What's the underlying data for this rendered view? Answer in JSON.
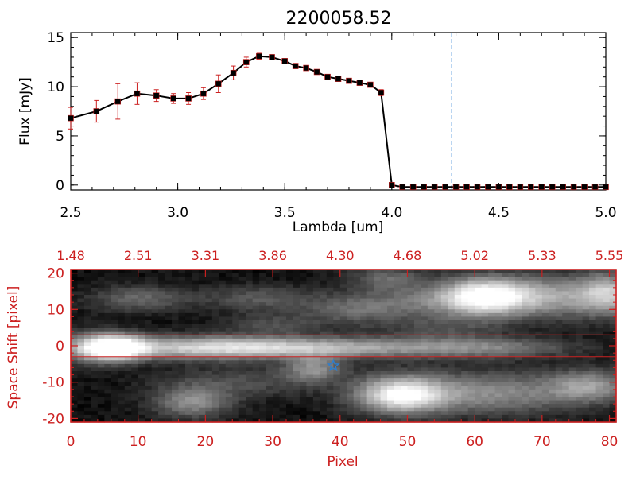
{
  "chart_data": [
    {
      "type": "line",
      "title": "2200058.52",
      "xlabel": "Lambda [um]",
      "ylabel": "Flux [mJy]",
      "xlim": [
        2.5,
        5.0
      ],
      "ylim": [
        -0.5,
        15.5
      ],
      "x_ticks": [
        "2.5",
        "3.0",
        "3.5",
        "4.0",
        "4.5",
        "5.0"
      ],
      "y_ticks": [
        "0",
        "5",
        "10",
        "15"
      ],
      "series": [
        {
          "x": [
            2.5,
            2.62,
            2.72,
            2.81,
            2.9,
            2.98,
            3.05,
            3.12,
            3.19,
            3.26,
            3.32,
            3.38,
            3.44,
            3.5,
            3.55,
            3.6,
            3.65,
            3.7,
            3.75,
            3.8,
            3.85,
            3.9,
            3.95,
            4.0,
            4.05,
            4.1,
            4.15,
            4.2,
            4.25,
            4.3,
            4.35,
            4.4,
            4.45,
            4.5,
            4.55,
            4.6,
            4.65,
            4.7,
            4.75,
            4.8,
            4.85,
            4.9,
            4.95,
            5.0
          ],
          "y": [
            6.8,
            7.5,
            8.5,
            9.3,
            9.1,
            8.8,
            8.8,
            9.3,
            10.3,
            11.4,
            12.5,
            13.1,
            13.0,
            12.6,
            12.1,
            11.9,
            11.5,
            11.0,
            10.8,
            10.6,
            10.4,
            10.2,
            9.4,
            0.0,
            -0.2,
            -0.2,
            -0.2,
            -0.2,
            -0.2,
            -0.2,
            -0.2,
            -0.2,
            -0.2,
            -0.2,
            -0.2,
            -0.2,
            -0.2,
            -0.2,
            -0.2,
            -0.2,
            -0.2,
            -0.2,
            -0.2,
            -0.2
          ],
          "yerr": [
            1.1,
            1.1,
            1.8,
            1.1,
            0.6,
            0.5,
            0.6,
            0.6,
            0.9,
            0.7,
            0.5,
            0.3,
            0.2,
            0.2,
            0.2,
            0.2,
            0.2,
            0.2,
            0.2,
            0.2,
            0.2,
            0.2,
            0.3,
            0,
            0,
            0,
            0,
            0,
            0,
            0,
            0,
            0,
            0,
            0,
            0,
            0,
            0,
            0,
            0,
            0,
            0,
            0,
            0,
            0
          ]
        }
      ],
      "vline_x": 4.28,
      "colors": {
        "line": "#000000",
        "markers": "#000000",
        "errorbars": "#cc2020",
        "vline": "#2a7fd4",
        "zero_line": "#cc2020"
      }
    },
    {
      "type": "heatmap",
      "xlabel": "Pixel",
      "ylabel": "Space Shift [pixel]",
      "xlim": [
        0,
        81
      ],
      "ylim": [
        -21,
        21
      ],
      "x_ticks": [
        "0",
        "10",
        "20",
        "30",
        "40",
        "50",
        "60",
        "70",
        "80"
      ],
      "y_ticks": [
        "-20",
        "-10",
        "0",
        "10",
        "20"
      ],
      "top_axis_ticks": [
        "1.48",
        "2.51",
        "3.31",
        "3.86",
        "4.30",
        "4.68",
        "5.02",
        "5.33",
        "5.55"
      ],
      "aperture_lines_y": [
        3,
        -3
      ],
      "star_marker": {
        "x": 39,
        "y": -5.5
      },
      "colors": {
        "axis": "#cc2020",
        "aperture": "#cc2020",
        "star": "#2a7fd4",
        "background": "#000000"
      },
      "blobs": [
        {
          "x": 3,
          "y": -0.5,
          "sx": 3.5,
          "sy": 3.0,
          "amp": 0.45
        },
        {
          "x": 7,
          "y": -0.5,
          "sx": 3.0,
          "sy": 2.4,
          "amp": 0.95
        },
        {
          "x": 20,
          "y": -0.5,
          "sx": 11.0,
          "sy": 2.2,
          "amp": 0.7
        },
        {
          "x": 40,
          "y": -0.5,
          "sx": 12.0,
          "sy": 2.0,
          "amp": 0.5
        },
        {
          "x": 62,
          "y": -0.5,
          "sx": 9.0,
          "sy": 2.0,
          "amp": 0.35
        },
        {
          "x": 61,
          "y": 13.5,
          "sx": 4.5,
          "sy": 3.5,
          "amp": 0.9
        },
        {
          "x": 71,
          "y": 13.5,
          "sx": 8.0,
          "sy": 4.0,
          "amp": 0.55
        },
        {
          "x": 80,
          "y": 14.5,
          "sx": 3.0,
          "sy": 4.0,
          "amp": 0.5
        },
        {
          "x": 49,
          "y": -13.5,
          "sx": 4.5,
          "sy": 3.5,
          "amp": 0.85
        },
        {
          "x": 62,
          "y": -13.0,
          "sx": 10.0,
          "sy": 4.0,
          "amp": 0.45
        },
        {
          "x": 77,
          "y": -11.0,
          "sx": 4.0,
          "sy": 3.0,
          "amp": 0.45
        },
        {
          "x": 18,
          "y": -15.5,
          "sx": 4.0,
          "sy": 3.0,
          "amp": 0.45
        },
        {
          "x": 10,
          "y": 13.0,
          "sx": 5.0,
          "sy": 2.5,
          "amp": 0.3
        },
        {
          "x": 28,
          "y": 13.0,
          "sx": 6.0,
          "sy": 2.5,
          "amp": 0.25
        },
        {
          "x": 42,
          "y": 10.0,
          "sx": 5.0,
          "sy": 3.0,
          "amp": 0.3
        },
        {
          "x": 51,
          "y": 12.0,
          "sx": 5.0,
          "sy": 3.0,
          "amp": 0.25
        },
        {
          "x": 36,
          "y": -6.5,
          "sx": 3.0,
          "sy": 2.5,
          "amp": 0.45
        },
        {
          "x": 47,
          "y": 18.5,
          "sx": 4.0,
          "sy": 2.5,
          "amp": 0.3
        },
        {
          "x": 30,
          "y": 6.0,
          "sx": 5.0,
          "sy": 2.0,
          "amp": 0.2
        },
        {
          "x": 25,
          "y": -10.0,
          "sx": 8.0,
          "sy": 3.0,
          "amp": 0.2
        },
        {
          "x": 55,
          "y": 5.0,
          "sx": 6.0,
          "sy": 2.5,
          "amp": 0.18
        }
      ]
    }
  ]
}
